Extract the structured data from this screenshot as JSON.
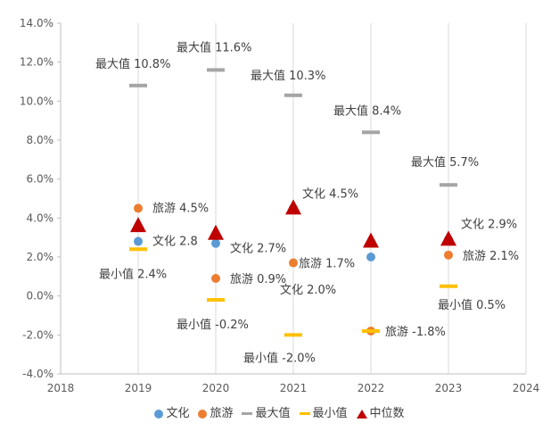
{
  "chart_data": {
    "type": "scatter",
    "title": "",
    "xlabel": "",
    "ylabel": "",
    "xlim": [
      2018,
      2024
    ],
    "ylim": [
      -4.0,
      14.0
    ],
    "x_ticks": [
      "2018",
      "2019",
      "2020",
      "2021",
      "2022",
      "2023",
      "2024"
    ],
    "y_ticks": [
      "-4.0%",
      "-2.0%",
      "0.0%",
      "2.0%",
      "4.0%",
      "6.0%",
      "8.0%",
      "10.0%",
      "12.0%",
      "14.0%"
    ],
    "grid": "vertical",
    "legend_position": "bottom",
    "series": [
      {
        "name": "文化",
        "marker": "circle",
        "color": "#5B9BD5",
        "points": [
          {
            "x": 2019,
            "y": 2.8,
            "label": "文化 2.8"
          },
          {
            "x": 2020,
            "y": 2.7,
            "label": "文化 2.7%"
          },
          {
            "x": 2021,
            "y": 4.5,
            "label": "文化 4.5%"
          },
          {
            "x": 2022,
            "y": 2.0,
            "label": "文化 2.0%"
          },
          {
            "x": 2023,
            "y": 2.9,
            "label": "文化 2.9%"
          }
        ]
      },
      {
        "name": "旅游",
        "marker": "circle",
        "color": "#ED7D31",
        "points": [
          {
            "x": 2019,
            "y": 4.5,
            "label": "旅游 4.5%"
          },
          {
            "x": 2020,
            "y": 0.9,
            "label": "旅游 0.9%"
          },
          {
            "x": 2021,
            "y": 1.7,
            "label": "旅游 1.7%"
          },
          {
            "x": 2022,
            "y": -1.8,
            "label": "旅游 -1.8%"
          },
          {
            "x": 2023,
            "y": 2.1,
            "label": "旅游 2.1%"
          }
        ]
      },
      {
        "name": "最大值",
        "marker": "dash",
        "color": "#A5A5A5",
        "points": [
          {
            "x": 2019,
            "y": 10.8,
            "label": "最大值 10.8%"
          },
          {
            "x": 2020,
            "y": 11.6,
            "label": "最大值 11.6%"
          },
          {
            "x": 2021,
            "y": 10.3,
            "label": "最大值 10.3%"
          },
          {
            "x": 2022,
            "y": 8.4,
            "label": "最大值 8.4%"
          },
          {
            "x": 2023,
            "y": 5.7,
            "label": "最大值 5.7%"
          }
        ]
      },
      {
        "name": "最小值",
        "marker": "dash",
        "color": "#FFC000",
        "points": [
          {
            "x": 2019,
            "y": 2.4,
            "label": "最小值 2.4%"
          },
          {
            "x": 2020,
            "y": -0.2,
            "label": "最小值 -0.2%"
          },
          {
            "x": 2021,
            "y": -2.0,
            "label": "最小值 -2.0%"
          },
          {
            "x": 2022,
            "y": -1.8,
            "label": ""
          },
          {
            "x": 2023,
            "y": 0.5,
            "label": "最小值 0.5%"
          }
        ]
      },
      {
        "name": "中位数",
        "marker": "triangle",
        "color": "#C00000",
        "points": [
          {
            "x": 2019,
            "y": 3.6,
            "label": ""
          },
          {
            "x": 2020,
            "y": 3.2,
            "label": ""
          },
          {
            "x": 2021,
            "y": 4.5,
            "label": ""
          },
          {
            "x": 2022,
            "y": 2.8,
            "label": ""
          },
          {
            "x": 2023,
            "y": 2.9,
            "label": ""
          }
        ]
      }
    ]
  }
}
